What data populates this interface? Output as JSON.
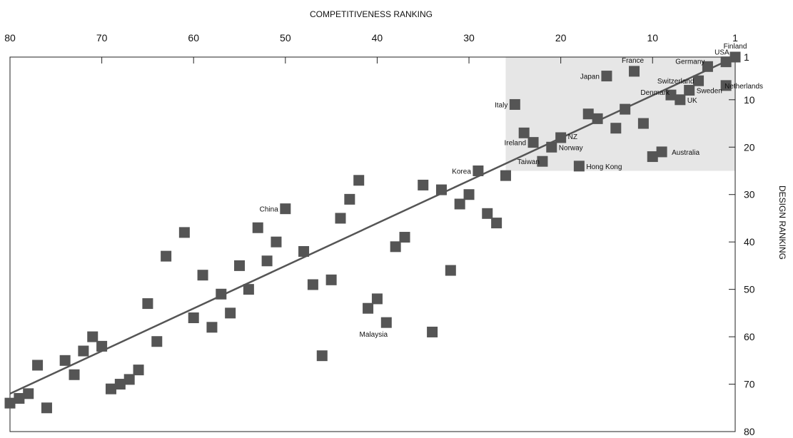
{
  "chart_data": {
    "type": "scatter",
    "title": "",
    "xlabel": "COMPETITIVENESS RANKING",
    "ylabel": "DESIGN RANKING",
    "xlim": [
      80,
      1
    ],
    "ylim": [
      1,
      80
    ],
    "x_ticks": [
      80,
      70,
      60,
      50,
      40,
      30,
      20,
      10,
      1
    ],
    "y_ticks": [
      1,
      10,
      20,
      30,
      40,
      50,
      60,
      70,
      80
    ],
    "x_reversed": true,
    "x_axis_position": "top",
    "y_axis_position": "right",
    "grid": false,
    "marker_color": "#555555",
    "line_color": "#555555",
    "highlight_color": "#e6e6e6",
    "highlight_region": {
      "x": [
        26,
        1
      ],
      "y": [
        1,
        25
      ]
    },
    "trend_line": [
      {
        "x": 80,
        "y": 72
      },
      {
        "x": 1,
        "y": 1
      }
    ],
    "points": [
      {
        "x": 1,
        "y": 1,
        "label": "Finland"
      },
      {
        "x": 2,
        "y": 2,
        "label": "USA"
      },
      {
        "x": 4,
        "y": 3,
        "label": "Germany"
      },
      {
        "x": 12,
        "y": 4,
        "label": "France"
      },
      {
        "x": 15,
        "y": 5,
        "label": "Japan"
      },
      {
        "x": 5,
        "y": 6,
        "label": "Switzerland"
      },
      {
        "x": 2,
        "y": 7,
        "label": "Netherlands"
      },
      {
        "x": 6,
        "y": 8,
        "label": "Sweden"
      },
      {
        "x": 8,
        "y": 9,
        "label": "Denmark"
      },
      {
        "x": 7,
        "y": 10,
        "label": "UK"
      },
      {
        "x": 25,
        "y": 11,
        "label": "Italy"
      },
      {
        "x": 13,
        "y": 12,
        "label": ""
      },
      {
        "x": 17,
        "y": 13,
        "label": ""
      },
      {
        "x": 16,
        "y": 14,
        "label": ""
      },
      {
        "x": 11,
        "y": 15,
        "label": ""
      },
      {
        "x": 14,
        "y": 16,
        "label": ""
      },
      {
        "x": 24,
        "y": 17,
        "label": ""
      },
      {
        "x": 20,
        "y": 18,
        "label": "NZ"
      },
      {
        "x": 23,
        "y": 19,
        "label": "Ireland"
      },
      {
        "x": 21,
        "y": 20,
        "label": "Norway"
      },
      {
        "x": 9,
        "y": 21,
        "label": "Australia"
      },
      {
        "x": 10,
        "y": 22,
        "label": ""
      },
      {
        "x": 22,
        "y": 23,
        "label": "Taiwan"
      },
      {
        "x": 18,
        "y": 24,
        "label": "Hong Kong"
      },
      {
        "x": 29,
        "y": 25,
        "label": "Korea"
      },
      {
        "x": 26,
        "y": 26,
        "label": ""
      },
      {
        "x": 42,
        "y": 27,
        "label": ""
      },
      {
        "x": 35,
        "y": 28,
        "label": ""
      },
      {
        "x": 33,
        "y": 29,
        "label": ""
      },
      {
        "x": 30,
        "y": 30,
        "label": ""
      },
      {
        "x": 43,
        "y": 31,
        "label": ""
      },
      {
        "x": 31,
        "y": 32,
        "label": ""
      },
      {
        "x": 50,
        "y": 33,
        "label": "China"
      },
      {
        "x": 28,
        "y": 34,
        "label": ""
      },
      {
        "x": 44,
        "y": 35,
        "label": ""
      },
      {
        "x": 27,
        "y": 36,
        "label": ""
      },
      {
        "x": 53,
        "y": 37,
        "label": ""
      },
      {
        "x": 61,
        "y": 38,
        "label": ""
      },
      {
        "x": 37,
        "y": 39,
        "label": ""
      },
      {
        "x": 51,
        "y": 40,
        "label": ""
      },
      {
        "x": 38,
        "y": 41,
        "label": ""
      },
      {
        "x": 48,
        "y": 42,
        "label": ""
      },
      {
        "x": 63,
        "y": 43,
        "label": ""
      },
      {
        "x": 52,
        "y": 44,
        "label": ""
      },
      {
        "x": 55,
        "y": 45,
        "label": ""
      },
      {
        "x": 32,
        "y": 46,
        "label": ""
      },
      {
        "x": 59,
        "y": 47,
        "label": ""
      },
      {
        "x": 45,
        "y": 48,
        "label": ""
      },
      {
        "x": 47,
        "y": 49,
        "label": ""
      },
      {
        "x": 54,
        "y": 50,
        "label": ""
      },
      {
        "x": 57,
        "y": 51,
        "label": ""
      },
      {
        "x": 40,
        "y": 52,
        "label": ""
      },
      {
        "x": 65,
        "y": 53,
        "label": ""
      },
      {
        "x": 41,
        "y": 54,
        "label": ""
      },
      {
        "x": 56,
        "y": 55,
        "label": ""
      },
      {
        "x": 60,
        "y": 56,
        "label": ""
      },
      {
        "x": 39,
        "y": 57,
        "label": "Malaysia"
      },
      {
        "x": 58,
        "y": 58,
        "label": ""
      },
      {
        "x": 34,
        "y": 59,
        "label": ""
      },
      {
        "x": 71,
        "y": 60,
        "label": ""
      },
      {
        "x": 64,
        "y": 61,
        "label": ""
      },
      {
        "x": 70,
        "y": 62,
        "label": ""
      },
      {
        "x": 72,
        "y": 63,
        "label": ""
      },
      {
        "x": 46,
        "y": 64,
        "label": ""
      },
      {
        "x": 74,
        "y": 65,
        "label": ""
      },
      {
        "x": 77,
        "y": 66,
        "label": ""
      },
      {
        "x": 66,
        "y": 67,
        "label": ""
      },
      {
        "x": 73,
        "y": 68,
        "label": ""
      },
      {
        "x": 67,
        "y": 69,
        "label": ""
      },
      {
        "x": 68,
        "y": 70,
        "label": ""
      },
      {
        "x": 69,
        "y": 71,
        "label": ""
      },
      {
        "x": 78,
        "y": 72,
        "label": ""
      },
      {
        "x": 79,
        "y": 73,
        "label": ""
      },
      {
        "x": 80,
        "y": 74,
        "label": ""
      },
      {
        "x": 76,
        "y": 75,
        "label": ""
      }
    ]
  }
}
